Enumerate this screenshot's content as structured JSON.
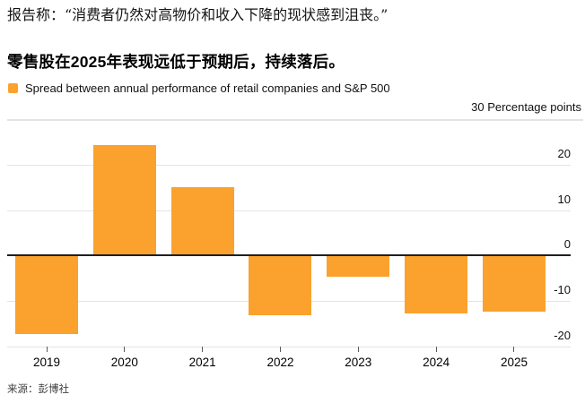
{
  "page": {
    "quote": "报告称：“消费者仍然对高物价和收入下降的现状感到沮丧。”",
    "source": "来源：彭博社"
  },
  "chart": {
    "title": "零售股在2025年表现远低于预期后，持续落后。",
    "legend_label": "Spread between annual performance of retail companies and S&P 500",
    "units_label": "30 Percentage points",
    "colors": {
      "bar": "#FAA22D",
      "grid": "#E4E4E4",
      "top_rule": "#E3E3E3",
      "zero_line": "#1F1F1F",
      "tick": "#5A5A5A"
    }
  },
  "chart_data": {
    "type": "bar",
    "categories": [
      "2019",
      "2020",
      "2021",
      "2022",
      "2023",
      "2024",
      "2025"
    ],
    "values": [
      -17.3,
      24.2,
      15.0,
      -13.1,
      -4.7,
      -12.7,
      -12.4
    ],
    "title": "零售股在2025年表现远低于预期后，持续落后。",
    "legend": [
      "Spread between annual performance of retail companies and S&P 500"
    ],
    "ylabel": "30 Percentage points",
    "ylim": [
      -20,
      30
    ],
    "yticks": [
      20,
      10,
      0,
      -10,
      -20
    ],
    "grid": true,
    "legend_position": "top-left",
    "bar_color": "#FAA22D"
  }
}
